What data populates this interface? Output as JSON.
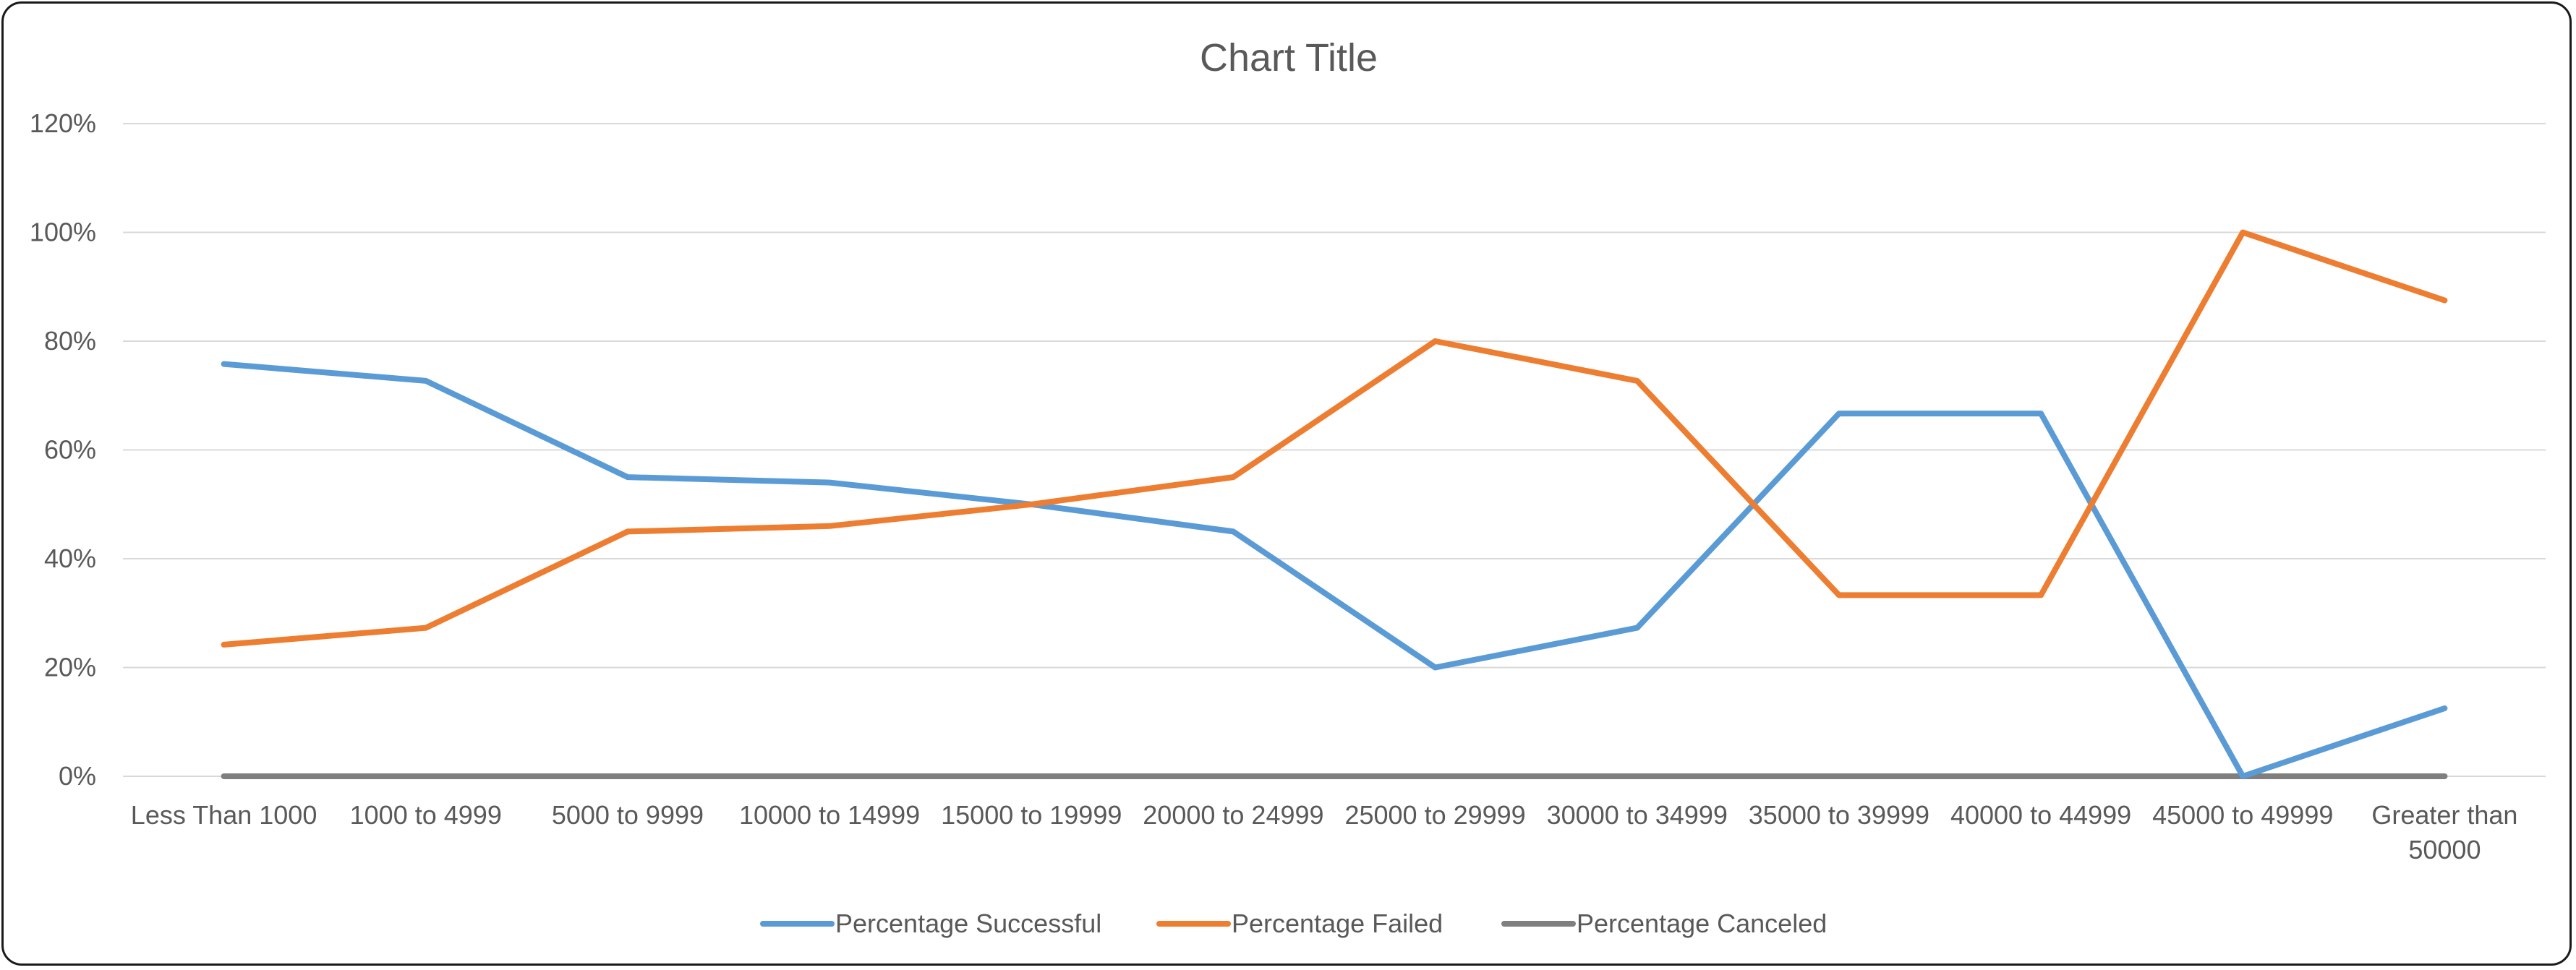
{
  "chart_data": {
    "type": "line",
    "title": "Chart Title",
    "xlabel": "",
    "ylabel": "",
    "ylim": [
      0,
      1.2
    ],
    "y_ticks": [
      0,
      0.2,
      0.4,
      0.6,
      0.8,
      1.0,
      1.2
    ],
    "y_tick_labels": [
      "0%",
      "20%",
      "40%",
      "60%",
      "80%",
      "100%",
      "120%"
    ],
    "grid": true,
    "legend_position": "bottom",
    "categories": [
      "Less Than 1000",
      "1000 to 4999",
      "5000 to 9999",
      "10000 to 14999",
      "15000 to 19999",
      "20000 to 24999",
      "25000 to 29999",
      "30000 to 34999",
      "35000 to 39999",
      "40000 to 44999",
      "45000 to 49999",
      "Greater than 50000"
    ],
    "series": [
      {
        "name": "Percentage Successful",
        "color": "#5B9BD5",
        "values": [
          0.758,
          0.727,
          0.55,
          0.54,
          0.5,
          0.45,
          0.2,
          0.273,
          0.667,
          0.667,
          0.0,
          0.125
        ]
      },
      {
        "name": "Percentage Failed",
        "color": "#ED7D31",
        "values": [
          0.242,
          0.273,
          0.45,
          0.46,
          0.5,
          0.55,
          0.8,
          0.727,
          0.333,
          0.333,
          1.0,
          0.875
        ]
      },
      {
        "name": "Percentage Canceled",
        "color": "#7F7F7F",
        "values": [
          0,
          0,
          0,
          0,
          0,
          0,
          0,
          0,
          0,
          0,
          0,
          0
        ]
      }
    ]
  }
}
